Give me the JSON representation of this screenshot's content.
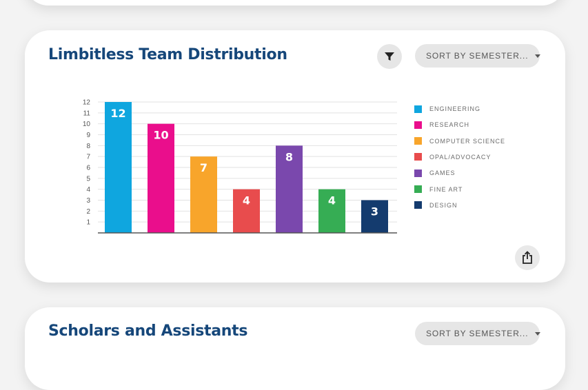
{
  "main_card": {
    "title": "Limbitless Team Distribution",
    "sort_label": "SORT BY SEMESTER...",
    "filter_icon": "funnel-icon",
    "share_icon": "share-icon"
  },
  "bottom_card": {
    "title": "Scholars and Assistants",
    "sort_label": "SORT BY SEMESTER..."
  },
  "chart_data": {
    "type": "bar",
    "categories": [
      "ENGINEERING",
      "RESEARCH",
      "COMPUTER SCIENCE",
      "OPAL/ADVOCACY",
      "GAMES",
      "FINE ART",
      "DESIGN"
    ],
    "values": [
      12,
      10,
      7,
      4,
      8,
      4,
      3
    ],
    "colors": [
      "#0fa6df",
      "#ea0e8c",
      "#f8a52b",
      "#e84c4d",
      "#7a48ad",
      "#36ad54",
      "#143b6e"
    ],
    "yticks": [
      1,
      2,
      3,
      4,
      5,
      6,
      7,
      8,
      9,
      10,
      11,
      12
    ],
    "ylim": [
      0,
      12
    ],
    "grid": true,
    "legend_position": "right",
    "data_labels": true
  }
}
